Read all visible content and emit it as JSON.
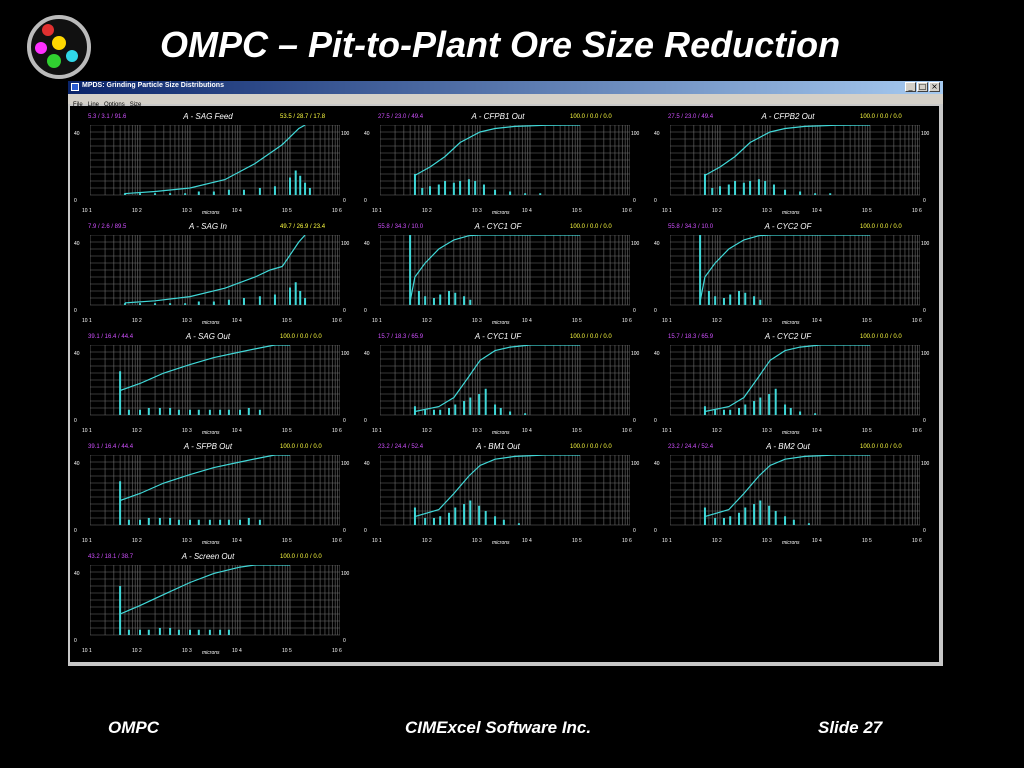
{
  "slide": {
    "title": "OMPC – Pit-to-Plant Ore Size Reduction",
    "footer_left": "OMPC",
    "footer_center": "CIMExcel Software Inc.",
    "footer_right": "Slide 27"
  },
  "colors": {
    "background": "#000000",
    "curve": "#40d8d8",
    "stats_left": "#d050ff",
    "stats_right": "#ffff40",
    "grid": "#6e6e6e",
    "window_frame": "#c8c8c8",
    "logo_dots": [
      "#e03030",
      "#ffd800",
      "#ff30ff",
      "#30d030",
      "#30d8e8"
    ]
  },
  "window": {
    "title": "MPDS: Grinding Particle Size Distributions",
    "menu": [
      "File",
      "Line",
      "Options",
      "Size"
    ],
    "buttons": [
      "_",
      "□",
      "×"
    ]
  },
  "axes": {
    "x_label": "microns",
    "x_ticks": [
      "10 1",
      "10 2",
      "10 3",
      "10 4",
      "10 5",
      "10 6"
    ],
    "y_left_max": "40",
    "y_left_min": "0",
    "y_right_max": "100",
    "y_right_min": "0"
  },
  "panels": [
    {
      "title": "A - SAG Feed",
      "left_stats": "5.3 / 3.1 / 91.6",
      "right_stats": "53.5 / 28.7 / 17.8"
    },
    {
      "title": "A - CFPB1 Out",
      "left_stats": "27.5 / 23.0 / 49.4",
      "right_stats": "100.0 / 0.0 / 0.0"
    },
    {
      "title": "A - CFPB2 Out",
      "left_stats": "27.5 / 23.0 / 49.4",
      "right_stats": "100.0 / 0.0 / 0.0"
    },
    {
      "title": "A - SAG In",
      "left_stats": "7.9 / 2.6 / 89.5",
      "right_stats": "49.7 / 26.9 / 23.4"
    },
    {
      "title": "A - CYC1 OF",
      "left_stats": "55.8 / 34.3 / 10.0",
      "right_stats": "100.0 / 0.0 / 0.0"
    },
    {
      "title": "A - CYC2 OF",
      "left_stats": "55.8 / 34.3 / 10.0",
      "right_stats": "100.0 / 0.0 / 0.0"
    },
    {
      "title": "A - SAG Out",
      "left_stats": "39.1 / 16.4 / 44.4",
      "right_stats": "100.0 / 0.0 / 0.0"
    },
    {
      "title": "A - CYC1 UF",
      "left_stats": "15.7 / 18.3 / 65.9",
      "right_stats": "100.0 / 0.0 / 0.0"
    },
    {
      "title": "A - CYC2 UF",
      "left_stats": "15.7 / 18.3 / 65.9",
      "right_stats": "100.0 / 0.0 / 0.0"
    },
    {
      "title": "A - SFPB Out",
      "left_stats": "39.1 / 16.4 / 44.4",
      "right_stats": "100.0 / 0.0 / 0.0"
    },
    {
      "title": "A - BM1 Out",
      "left_stats": "23.2 / 24.4 / 52.4",
      "right_stats": "100.0 / 0.0 / 0.0"
    },
    {
      "title": "A - BM2 Out",
      "left_stats": "23.2 / 24.4 / 52.4",
      "right_stats": "100.0 / 0.0 / 0.0"
    },
    {
      "title": "A - Screen Out",
      "left_stats": "43.2 / 18.1 / 38.7",
      "right_stats": "100.0 / 0.0 / 0.0"
    }
  ],
  "chart_data": [
    {
      "type": "line",
      "title": "A - SAG Feed",
      "xlabel": "microns",
      "xscale": "log",
      "xlim": [
        10,
        1000000
      ],
      "ylim_left": [
        0,
        40
      ],
      "ylim_right": [
        0,
        100
      ],
      "curve": {
        "x": [
          50,
          200,
          1000,
          5000,
          20000,
          70000,
          150000,
          200000
        ],
        "y": [
          2,
          5,
          10,
          22,
          45,
          72,
          95,
          100
        ]
      },
      "bars": {
        "x": [
          50,
          100,
          200,
          400,
          800,
          1500,
          3000,
          6000,
          12000,
          25000,
          50000,
          100000,
          130000,
          160000,
          200000,
          250000
        ],
        "y": [
          1,
          1,
          1,
          1,
          1,
          2,
          2,
          3,
          3,
          4,
          5,
          10,
          14,
          11,
          7,
          4
        ]
      }
    },
    {
      "type": "line",
      "title": "A - CFPB1 Out",
      "xlabel": "microns",
      "xscale": "log",
      "xlim": [
        10,
        1000000
      ],
      "ylim_left": [
        0,
        40
      ],
      "ylim_right": [
        0,
        100
      ],
      "curve": {
        "x": [
          50,
          100,
          200,
          400,
          1000,
          2000,
          5000,
          20000,
          100000
        ],
        "y": [
          28,
          40,
          55,
          75,
          90,
          95,
          98,
          99.5,
          100
        ]
      },
      "bars": {
        "x": [
          50,
          70,
          100,
          150,
          200,
          300,
          400,
          600,
          800,
          1200,
          2000,
          4000,
          8000,
          16000
        ],
        "y": [
          12,
          4,
          5,
          6,
          8,
          7,
          8,
          9,
          8,
          6,
          3,
          2,
          1,
          1
        ]
      }
    },
    {
      "type": "line",
      "title": "A - CFPB2 Out",
      "xlabel": "microns",
      "xscale": "log",
      "xlim": [
        10,
        1000000
      ],
      "ylim_left": [
        0,
        40
      ],
      "ylim_right": [
        0,
        100
      ],
      "curve": {
        "x": [
          50,
          100,
          200,
          400,
          1000,
          2000,
          5000,
          20000,
          100000
        ],
        "y": [
          28,
          40,
          55,
          75,
          90,
          95,
          98,
          99.5,
          100
        ]
      },
      "bars": {
        "x": [
          50,
          70,
          100,
          150,
          200,
          300,
          400,
          600,
          800,
          1200,
          2000,
          4000,
          8000,
          16000
        ],
        "y": [
          12,
          4,
          5,
          6,
          8,
          7,
          8,
          9,
          8,
          6,
          3,
          2,
          1,
          1
        ]
      }
    },
    {
      "type": "line",
      "title": "A - SAG In",
      "xlabel": "microns",
      "xscale": "log",
      "xlim": [
        10,
        1000000
      ],
      "ylim_left": [
        0,
        40
      ],
      "ylim_right": [
        0,
        100
      ],
      "curve": {
        "x": [
          50,
          200,
          1000,
          5000,
          20000,
          40000,
          70000,
          150000,
          200000
        ],
        "y": [
          3,
          6,
          12,
          24,
          40,
          50,
          55,
          90,
          100
        ]
      },
      "bars": {
        "x": [
          50,
          100,
          200,
          400,
          800,
          1500,
          3000,
          6000,
          12000,
          25000,
          50000,
          100000,
          130000,
          160000,
          200000
        ],
        "y": [
          1,
          1,
          1,
          1,
          1,
          2,
          2,
          3,
          4,
          5,
          6,
          10,
          13,
          8,
          4
        ]
      }
    },
    {
      "type": "line",
      "title": "A - CYC1 OF",
      "xlabel": "microns",
      "xscale": "log",
      "xlim": [
        10,
        1000000
      ],
      "ylim_left": [
        0,
        40
      ],
      "ylim_right": [
        0,
        100
      ],
      "curve": {
        "x": [
          40,
          50,
          80,
          150,
          300,
          600,
          1000,
          5000,
          100000
        ],
        "y": [
          5,
          40,
          60,
          80,
          93,
          99,
          100,
          100,
          100
        ]
      },
      "bars": {
        "x": [
          40,
          60,
          80,
          120,
          160,
          240,
          320,
          480,
          640
        ],
        "y": [
          40,
          8,
          5,
          4,
          6,
          8,
          7,
          5,
          3
        ]
      }
    },
    {
      "type": "line",
      "title": "A - CYC2 OF",
      "xlabel": "microns",
      "xscale": "log",
      "xlim": [
        10,
        1000000
      ],
      "ylim_left": [
        0,
        40
      ],
      "ylim_right": [
        0,
        100
      ],
      "curve": {
        "x": [
          40,
          50,
          80,
          150,
          300,
          600,
          1000,
          5000,
          100000
        ],
        "y": [
          5,
          40,
          60,
          80,
          93,
          99,
          100,
          100,
          100
        ]
      },
      "bars": {
        "x": [
          40,
          60,
          80,
          120,
          160,
          240,
          320,
          480,
          640
        ],
        "y": [
          40,
          8,
          5,
          4,
          6,
          8,
          7,
          5,
          3
        ]
      }
    },
    {
      "type": "line",
      "title": "A - SAG Out",
      "xlabel": "microns",
      "xscale": "log",
      "xlim": [
        10,
        1000000
      ],
      "ylim_left": [
        0,
        40
      ],
      "ylim_right": [
        0,
        100
      ],
      "curve": {
        "x": [
          40,
          100,
          300,
          1000,
          3000,
          10000,
          30000,
          50000,
          100000
        ],
        "y": [
          35,
          45,
          60,
          72,
          82,
          90,
          97,
          100,
          100
        ]
      },
      "bars": {
        "x": [
          40,
          60,
          100,
          150,
          250,
          400,
          600,
          1000,
          1500,
          2500,
          4000,
          6000,
          10000,
          15000,
          25000
        ],
        "y": [
          25,
          3,
          3,
          4,
          4,
          4,
          3,
          3,
          3,
          3,
          3,
          3,
          3,
          4,
          3
        ]
      }
    },
    {
      "type": "line",
      "title": "A - CYC1 UF",
      "xlabel": "microns",
      "xscale": "log",
      "xlim": [
        10,
        1000000
      ],
      "ylim_left": [
        0,
        40
      ],
      "ylim_right": [
        0,
        100
      ],
      "curve": {
        "x": [
          50,
          150,
          300,
          600,
          1000,
          2000,
          4000,
          10000,
          100000
        ],
        "y": [
          5,
          12,
          25,
          55,
          78,
          92,
          97,
          100,
          100
        ]
      },
      "bars": {
        "x": [
          50,
          80,
          120,
          160,
          240,
          320,
          480,
          640,
          960,
          1300,
          2000,
          2600,
          4000,
          8000
        ],
        "y": [
          5,
          3,
          3,
          3,
          4,
          6,
          8,
          10,
          12,
          15,
          6,
          4,
          2,
          1
        ]
      }
    },
    {
      "type": "line",
      "title": "A - CYC2 UF",
      "xlabel": "microns",
      "xscale": "log",
      "xlim": [
        10,
        1000000
      ],
      "ylim_left": [
        0,
        40
      ],
      "ylim_right": [
        0,
        100
      ],
      "curve": {
        "x": [
          50,
          150,
          300,
          600,
          1000,
          2000,
          4000,
          10000,
          100000
        ],
        "y": [
          5,
          12,
          25,
          55,
          78,
          92,
          97,
          100,
          100
        ]
      },
      "bars": {
        "x": [
          50,
          80,
          120,
          160,
          240,
          320,
          480,
          640,
          960,
          1300,
          2000,
          2600,
          4000,
          8000
        ],
        "y": [
          5,
          3,
          3,
          3,
          4,
          6,
          8,
          10,
          12,
          15,
          6,
          4,
          2,
          1
        ]
      }
    },
    {
      "type": "line",
      "title": "A - SFPB Out",
      "xlabel": "microns",
      "xscale": "log",
      "xlim": [
        10,
        1000000
      ],
      "ylim_left": [
        0,
        40
      ],
      "ylim_right": [
        0,
        100
      ],
      "curve": {
        "x": [
          40,
          100,
          300,
          1000,
          3000,
          10000,
          30000,
          50000,
          100000
        ],
        "y": [
          35,
          45,
          60,
          72,
          82,
          90,
          97,
          100,
          100
        ]
      },
      "bars": {
        "x": [
          40,
          60,
          100,
          150,
          250,
          400,
          600,
          1000,
          1500,
          2500,
          4000,
          6000,
          10000,
          15000,
          25000
        ],
        "y": [
          25,
          3,
          3,
          4,
          4,
          4,
          3,
          3,
          3,
          3,
          3,
          3,
          3,
          4,
          3
        ]
      }
    },
    {
      "type": "line",
      "title": "A - BM1 Out",
      "xlabel": "microns",
      "xscale": "log",
      "xlim": [
        10,
        1000000
      ],
      "ylim_left": [
        0,
        40
      ],
      "ylim_right": [
        0,
        100
      ],
      "curve": {
        "x": [
          50,
          150,
          300,
          600,
          1000,
          2000,
          5000,
          20000,
          100000
        ],
        "y": [
          12,
          22,
          45,
          70,
          85,
          94,
          98,
          100,
          100
        ]
      },
      "bars": {
        "x": [
          50,
          80,
          120,
          160,
          240,
          320,
          480,
          640,
          960,
          1300,
          2000,
          3000,
          6000
        ],
        "y": [
          10,
          4,
          4,
          5,
          7,
          10,
          12,
          14,
          11,
          8,
          5,
          3,
          1
        ]
      }
    },
    {
      "type": "line",
      "title": "A - BM2 Out",
      "xlabel": "microns",
      "xscale": "log",
      "xlim": [
        10,
        1000000
      ],
      "ylim_left": [
        0,
        40
      ],
      "ylim_right": [
        0,
        100
      ],
      "curve": {
        "x": [
          50,
          150,
          300,
          600,
          1000,
          2000,
          5000,
          20000,
          100000
        ],
        "y": [
          12,
          22,
          45,
          70,
          85,
          94,
          98,
          100,
          100
        ]
      },
      "bars": {
        "x": [
          50,
          80,
          120,
          160,
          240,
          320,
          480,
          640,
          960,
          1300,
          2000,
          3000,
          6000
        ],
        "y": [
          10,
          4,
          4,
          5,
          7,
          10,
          12,
          14,
          11,
          8,
          5,
          3,
          1
        ]
      }
    },
    {
      "type": "line",
      "title": "A - Screen Out",
      "xlabel": "microns",
      "xscale": "log",
      "xlim": [
        10,
        1000000
      ],
      "ylim_left": [
        0,
        40
      ],
      "ylim_right": [
        0,
        100
      ],
      "curve": {
        "x": [
          40,
          100,
          300,
          1000,
          3000,
          10000,
          20000,
          100000
        ],
        "y": [
          30,
          42,
          58,
          75,
          88,
          97,
          100,
          100
        ]
      },
      "bars": {
        "x": [
          40,
          60,
          100,
          150,
          250,
          400,
          600,
          1000,
          1500,
          2500,
          4000,
          6000
        ],
        "y": [
          28,
          3,
          3,
          3,
          4,
          4,
          3,
          3,
          3,
          3,
          3,
          3
        ]
      }
    }
  ]
}
